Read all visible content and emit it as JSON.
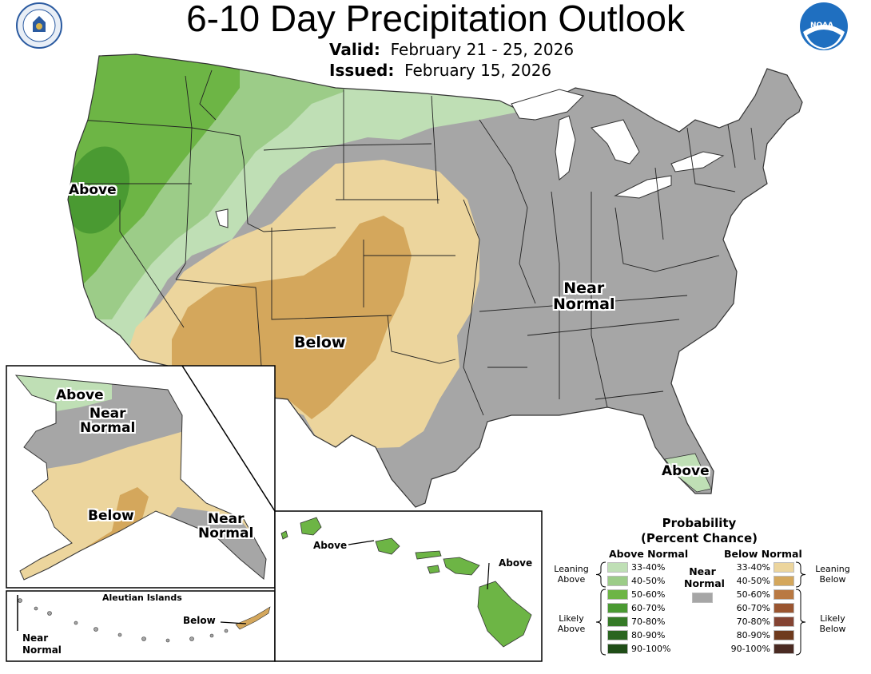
{
  "header": {
    "title": "6-10 Day Precipitation Outlook",
    "valid_label": "Valid:",
    "valid_value": "February 21 - 25, 2026",
    "issued_label": "Issued:",
    "issued_value": "February 15, 2026",
    "left_logo": "department-of-commerce-seal",
    "right_logo": "noaa-logo",
    "noaa_text": "NOAA"
  },
  "map_labels": {
    "west_above": "Above",
    "near_normal_east_line1": "Near",
    "near_normal_east_line2": "Normal",
    "southwest_below": "Below",
    "florida_above": "Above",
    "alaska_above": "Above",
    "alaska_near_line1": "Near",
    "alaska_near_line2": "Normal",
    "alaska_below": "Below",
    "alaska_se_near_line1": "Near",
    "alaska_se_near_line2": "Normal",
    "aleutian_title": "Aleutian Islands",
    "aleutian_near_line1": "Near",
    "aleutian_near_line2": "Normal",
    "aleutian_below": "Below",
    "hawaii_above_west": "Above",
    "hawaii_above_east": "Above"
  },
  "legend": {
    "title_line1": "Probability",
    "title_line2": "(Percent Chance)",
    "above_heading": "Above Normal",
    "below_heading": "Below Normal",
    "near_line1": "Near",
    "near_line2": "Normal",
    "near_color": "#a6a6a6",
    "leaning_above_line1": "Leaning",
    "leaning_above_line2": "Above",
    "likely_above_line1": "Likely",
    "likely_above_line2": "Above",
    "leaning_below_line1": "Leaning",
    "leaning_below_line2": "Below",
    "likely_below_line1": "Likely",
    "likely_below_line2": "Below",
    "above": [
      {
        "label": "33-40%",
        "color": "#bfdfb5"
      },
      {
        "label": "40-50%",
        "color": "#9ccc88"
      },
      {
        "label": "50-60%",
        "color": "#6db545"
      },
      {
        "label": "60-70%",
        "color": "#4a9a32"
      },
      {
        "label": "70-80%",
        "color": "#357a27"
      },
      {
        "label": "80-90%",
        "color": "#2a6520"
      },
      {
        "label": "90-100%",
        "color": "#1f4d17"
      }
    ],
    "below": [
      {
        "label": "33-40%",
        "color": "#ecd59d"
      },
      {
        "label": "40-50%",
        "color": "#d4a75c"
      },
      {
        "label": "50-60%",
        "color": "#b97942"
      },
      {
        "label": "60-70%",
        "color": "#9a5530"
      },
      {
        "label": "70-80%",
        "color": "#844433"
      },
      {
        "label": "80-90%",
        "color": "#6e3a1d"
      },
      {
        "label": "90-100%",
        "color": "#4a2a22"
      }
    ]
  }
}
